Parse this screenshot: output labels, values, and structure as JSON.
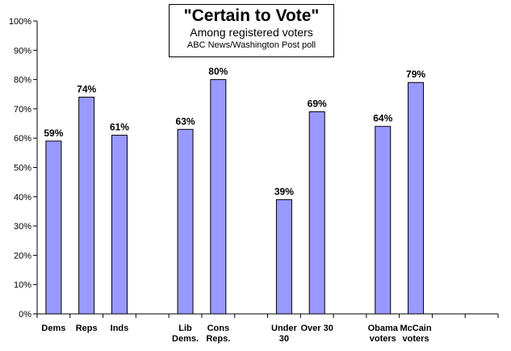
{
  "chart_data": {
    "type": "bar",
    "title": "\"Certain to Vote\"",
    "subtitle": "Among registered voters",
    "source": "ABC News/Washington Post poll",
    "xlabel": "",
    "ylabel": "",
    "ylim": [
      0,
      100
    ],
    "y_ticks": [
      "0%",
      "10%",
      "20%",
      "30%",
      "40%",
      "50%",
      "60%",
      "70%",
      "80%",
      "90%",
      "100%"
    ],
    "grid": false,
    "legend": "none",
    "bar_color": "#9999ff",
    "slots": 14,
    "categories": [
      {
        "label": [
          "Dems"
        ],
        "value": 59,
        "value_label": "59%",
        "slot": 0
      },
      {
        "label": [
          "Reps"
        ],
        "value": 74,
        "value_label": "74%",
        "slot": 1
      },
      {
        "label": [
          "Inds"
        ],
        "value": 61,
        "value_label": "61%",
        "slot": 2
      },
      {
        "label": [
          "Lib",
          "Dems."
        ],
        "value": 63,
        "value_label": "63%",
        "slot": 4
      },
      {
        "label": [
          "Cons",
          "Reps."
        ],
        "value": 80,
        "value_label": "80%",
        "slot": 5
      },
      {
        "label": [
          "Under",
          "30"
        ],
        "value": 39,
        "value_label": "39%",
        "slot": 7
      },
      {
        "label": [
          "Over 30"
        ],
        "value": 69,
        "value_label": "69%",
        "slot": 8
      },
      {
        "label": [
          "Obama",
          "voters"
        ],
        "value": 64,
        "value_label": "64%",
        "slot": 10
      },
      {
        "label": [
          "McCain",
          "voters"
        ],
        "value": 79,
        "value_label": "79%",
        "slot": 11
      }
    ]
  }
}
